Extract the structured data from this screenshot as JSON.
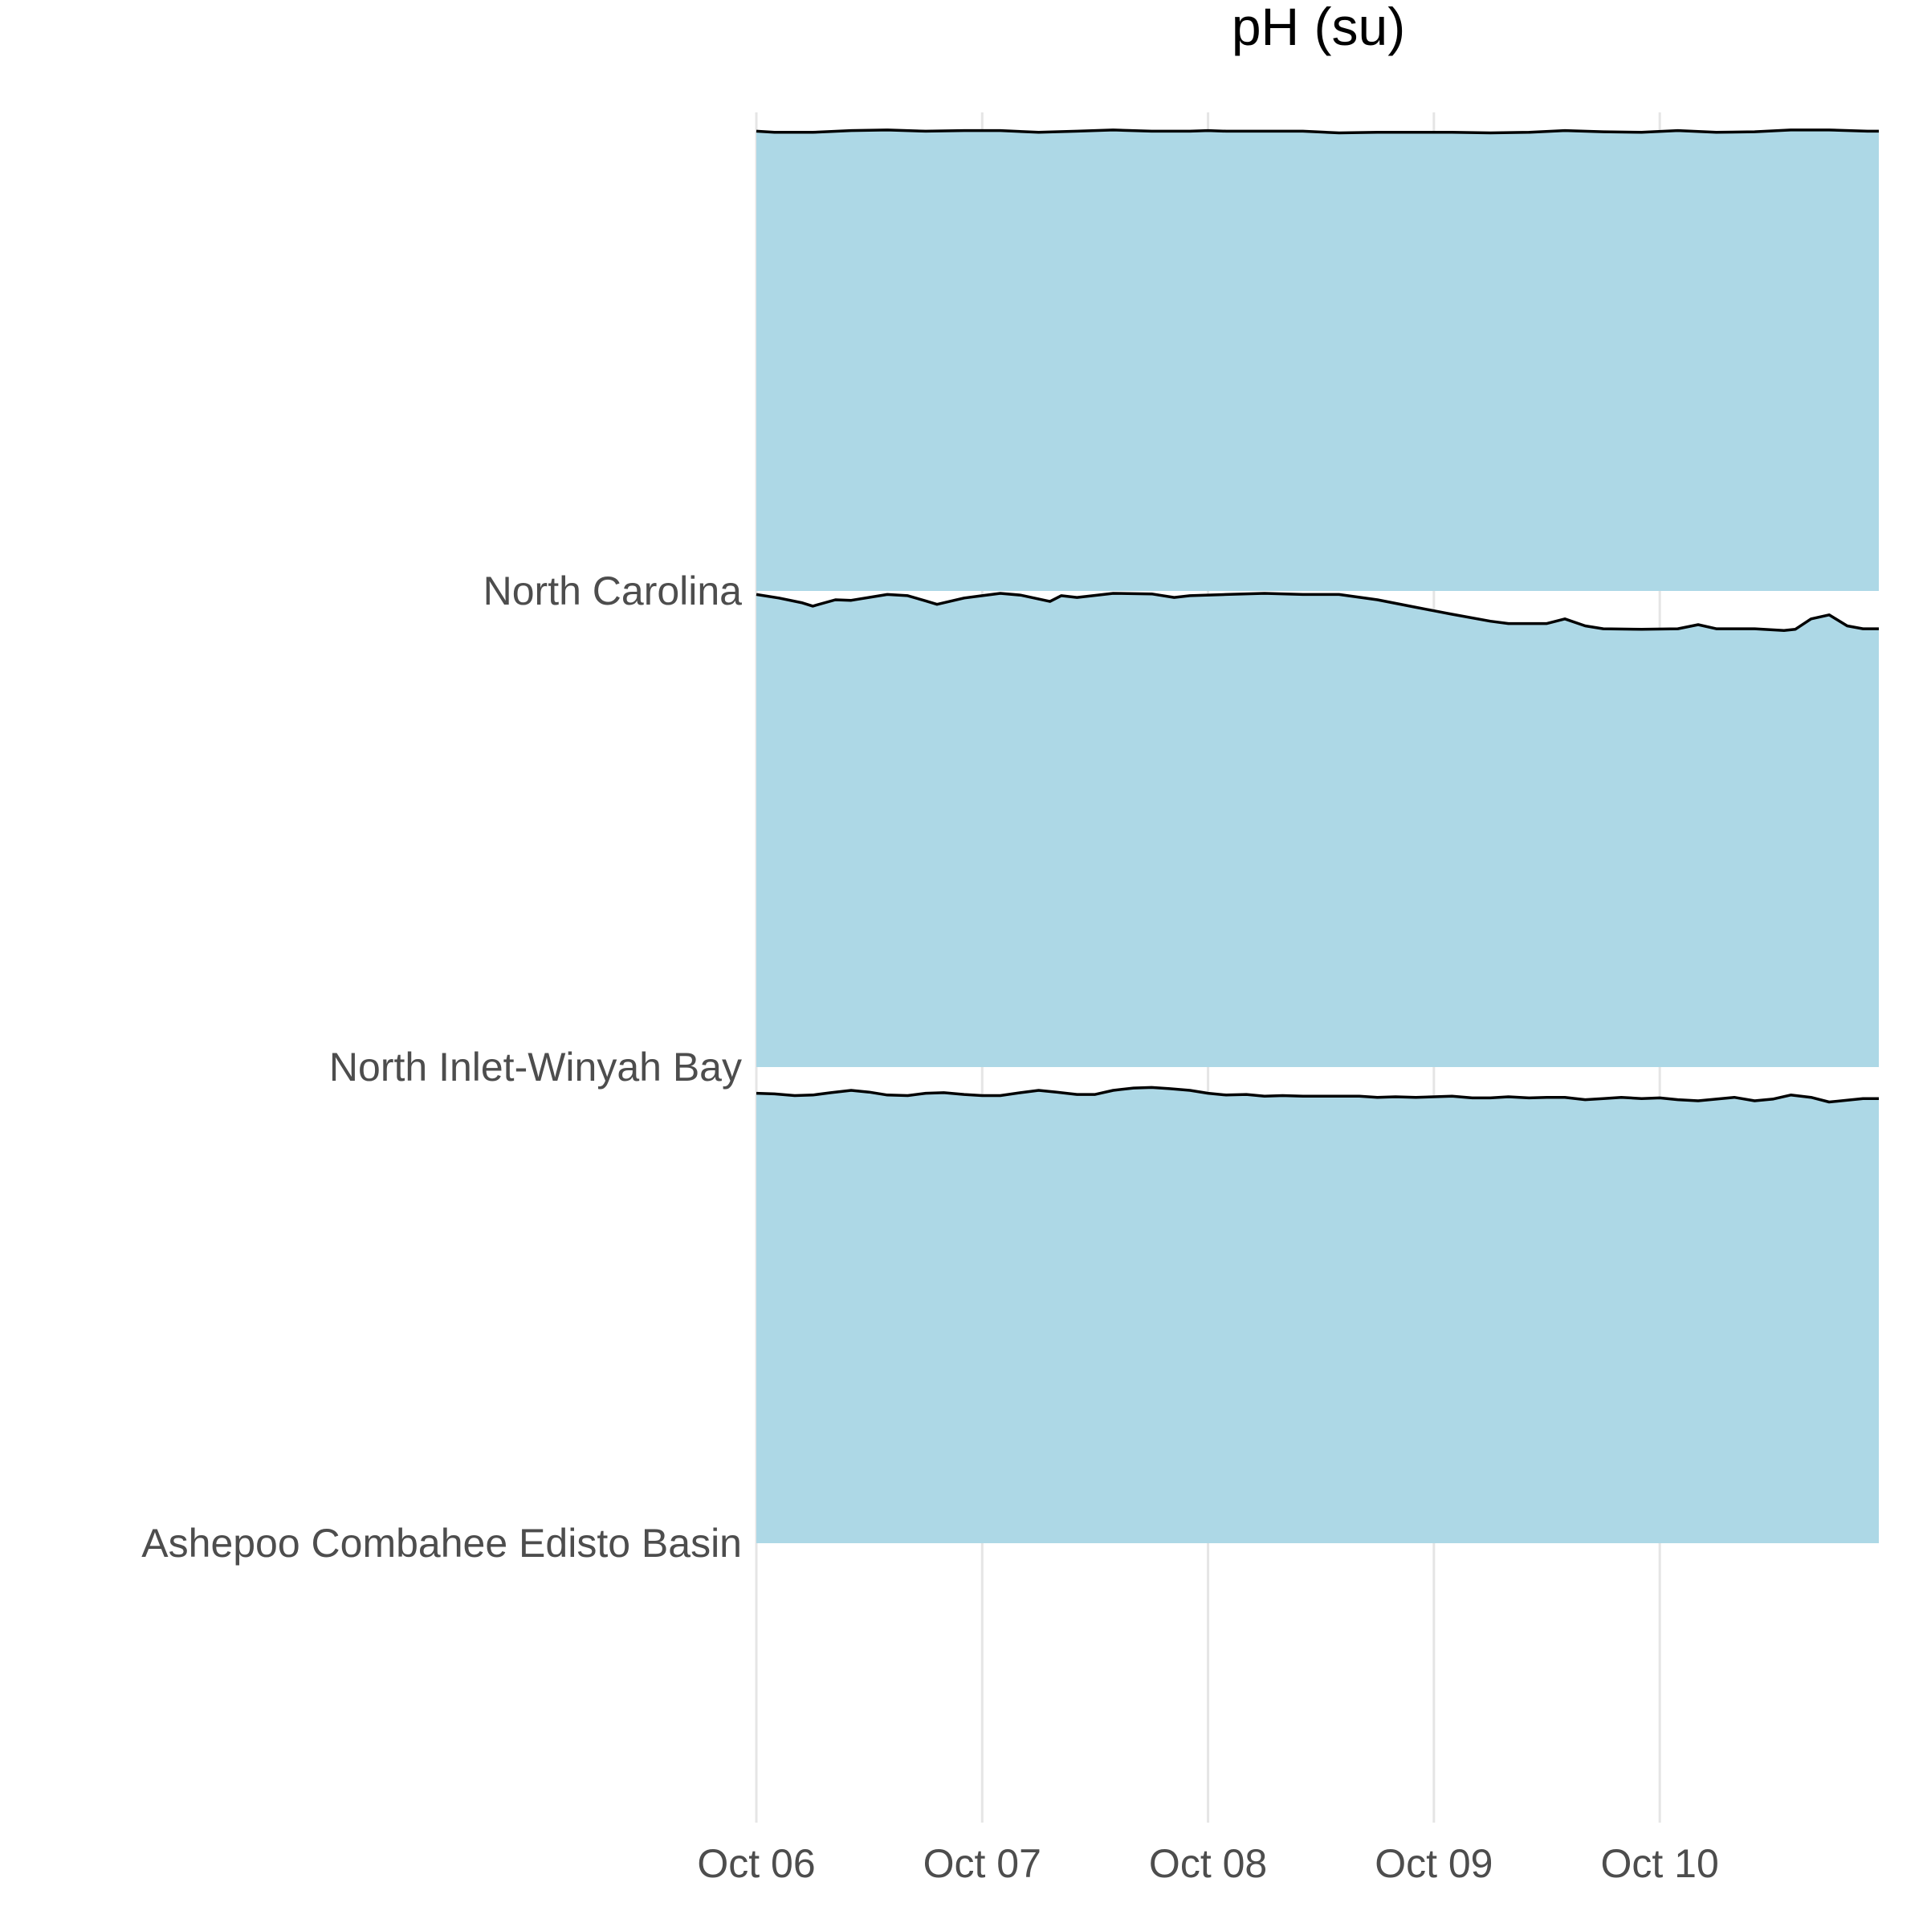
{
  "chart_data": {
    "type": "area",
    "subtype": "ridgeline",
    "title": "pH (su)",
    "xlabel": "",
    "ylabel": "",
    "x_tick_labels": [
      "Oct 06",
      "Oct 07",
      "Oct 08",
      "Oct 09",
      "Oct 10"
    ],
    "x_range_days": [
      0,
      4.97
    ],
    "fill_color": "#add8e6",
    "line_color": "#000000",
    "grid": "vertical",
    "legend": "none",
    "series": [
      {
        "name": "North Carolina",
        "day": [
          0,
          0.08,
          0.25,
          0.42,
          0.58,
          0.75,
          0.92,
          1.08,
          1.25,
          1.42,
          1.58,
          1.75,
          1.92,
          2.0,
          2.08,
          2.25,
          2.42,
          2.58,
          2.75,
          2.92,
          3.08,
          3.25,
          3.42,
          3.58,
          3.75,
          3.92,
          4.08,
          4.25,
          4.42,
          4.58,
          4.75,
          4.92,
          4.97
        ],
        "ph": [
          7.92,
          7.9,
          7.9,
          7.93,
          7.94,
          7.92,
          7.93,
          7.93,
          7.9,
          7.92,
          7.94,
          7.92,
          7.92,
          7.93,
          7.92,
          7.92,
          7.92,
          7.89,
          7.9,
          7.9,
          7.9,
          7.89,
          7.9,
          7.93,
          7.91,
          7.9,
          7.93,
          7.9,
          7.91,
          7.94,
          7.94,
          7.92,
          7.92
        ]
      },
      {
        "name": "North Inlet-Winyah Bay",
        "day": [
          0,
          0.1,
          0.2,
          0.25,
          0.35,
          0.42,
          0.58,
          0.67,
          0.75,
          0.8,
          0.92,
          1.0,
          1.08,
          1.17,
          1.3,
          1.35,
          1.42,
          1.58,
          1.75,
          1.85,
          1.92,
          2.08,
          2.25,
          2.42,
          2.58,
          2.75,
          2.92,
          3.0,
          3.08,
          3.25,
          3.33,
          3.5,
          3.58,
          3.67,
          3.75,
          3.92,
          4.08,
          4.17,
          4.25,
          4.42,
          4.55,
          4.6,
          4.67,
          4.75,
          4.83,
          4.9,
          4.97
        ],
        "ph": [
          8.14,
          8.08,
          8.0,
          7.94,
          8.05,
          8.04,
          8.14,
          8.12,
          8.03,
          7.97,
          8.08,
          8.12,
          8.16,
          8.13,
          8.02,
          8.12,
          8.09,
          8.16,
          8.15,
          8.09,
          8.12,
          8.14,
          8.16,
          8.14,
          8.14,
          8.05,
          7.92,
          7.86,
          7.8,
          7.68,
          7.64,
          7.64,
          7.72,
          7.6,
          7.55,
          7.54,
          7.55,
          7.62,
          7.55,
          7.55,
          7.52,
          7.54,
          7.72,
          7.79,
          7.6,
          7.55,
          7.55
        ]
      },
      {
        "name": "Ashepoo Combahee Edisto Basin",
        "day": [
          0,
          0.08,
          0.17,
          0.25,
          0.33,
          0.42,
          0.5,
          0.58,
          0.67,
          0.75,
          0.83,
          0.92,
          1.0,
          1.08,
          1.17,
          1.25,
          1.33,
          1.42,
          1.5,
          1.58,
          1.67,
          1.75,
          1.83,
          1.92,
          2.0,
          2.08,
          2.17,
          2.25,
          2.33,
          2.42,
          2.5,
          2.58,
          2.67,
          2.75,
          2.83,
          2.92,
          3.0,
          3.08,
          3.17,
          3.25,
          3.33,
          3.42,
          3.5,
          3.58,
          3.67,
          3.75,
          3.83,
          3.92,
          4.0,
          4.08,
          4.17,
          4.25,
          4.33,
          4.42,
          4.5,
          4.58,
          4.67,
          4.75,
          4.83,
          4.9,
          4.97
        ],
        "ph": [
          7.75,
          7.74,
          7.71,
          7.72,
          7.76,
          7.8,
          7.77,
          7.72,
          7.71,
          7.75,
          7.76,
          7.73,
          7.71,
          7.71,
          7.76,
          7.8,
          7.77,
          7.73,
          7.73,
          7.8,
          7.84,
          7.85,
          7.83,
          7.8,
          7.75,
          7.72,
          7.73,
          7.7,
          7.71,
          7.7,
          7.7,
          7.7,
          7.7,
          7.68,
          7.69,
          7.68,
          7.69,
          7.7,
          7.67,
          7.67,
          7.69,
          7.67,
          7.68,
          7.68,
          7.64,
          7.66,
          7.68,
          7.66,
          7.67,
          7.64,
          7.62,
          7.65,
          7.68,
          7.62,
          7.65,
          7.72,
          7.68,
          7.6,
          7.63,
          7.66,
          7.66
        ]
      }
    ]
  }
}
